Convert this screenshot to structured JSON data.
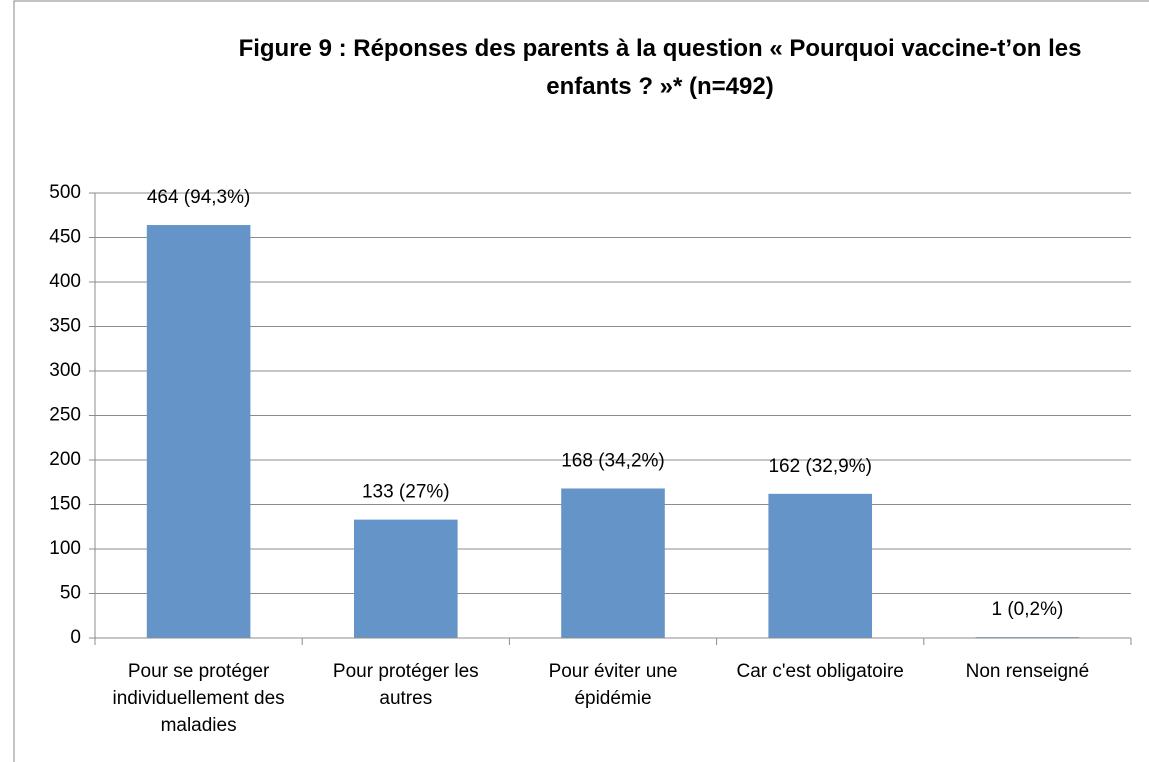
{
  "chart_data": {
    "type": "bar",
    "title": "Figure 9 : Réponses des parents à la question « Pourquoi vaccine-t’on les enfants ? »* (n=492)",
    "categories": [
      "Pour se protéger individuellement des maladies",
      "Pour protéger les autres",
      "Pour éviter une épidémie",
      "Car c'est obligatoire",
      "Non renseigné"
    ],
    "values": [
      464,
      133,
      168,
      162,
      1
    ],
    "value_labels": [
      "464 (94,3%)",
      "133 (27%)",
      "168 (34,2%)",
      "162 (32,9%)",
      "1 (0,2%)"
    ],
    "color": "#6594c8",
    "ylim": [
      0,
      500
    ],
    "yticks": [
      0,
      50,
      100,
      150,
      200,
      250,
      300,
      350,
      400,
      450,
      500
    ],
    "grid": true
  }
}
